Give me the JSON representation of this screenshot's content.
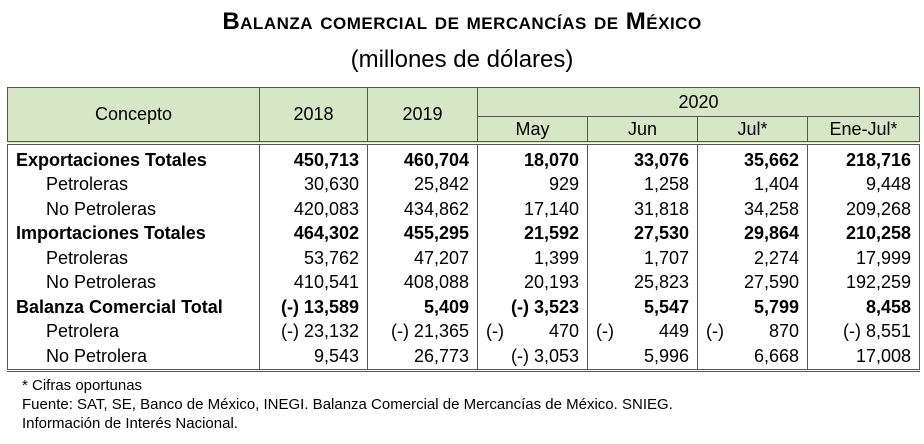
{
  "title": "Balanza comercial de mercancías de México",
  "subtitle": "(millones de dólares)",
  "table": {
    "header_concept": "Concepto",
    "header_years": [
      "2018",
      "2019"
    ],
    "header_group": "2020",
    "header_months": [
      "May",
      "Jun",
      "Jul*",
      "Ene-Jul*"
    ],
    "rows": [
      {
        "label": "Exportaciones Totales",
        "values": [
          "450,713",
          "460,704",
          "18,070",
          "33,076",
          "35,662",
          "218,716"
        ]
      },
      {
        "label": "Petroleras",
        "values": [
          "30,630",
          "25,842",
          "929",
          "1,258",
          "1,404",
          "9,448"
        ]
      },
      {
        "label": "No Petroleras",
        "values": [
          "420,083",
          "434,862",
          "17,140",
          "31,818",
          "34,258",
          "209,268"
        ]
      },
      {
        "label": "Importaciones Totales",
        "values": [
          "464,302",
          "455,295",
          "21,592",
          "27,530",
          "29,864",
          "210,258"
        ]
      },
      {
        "label": "Petroleras",
        "values": [
          "53,762",
          "47,207",
          "1,399",
          "1,707",
          "2,274",
          "17,999"
        ]
      },
      {
        "label": "No Petroleras",
        "values": [
          "410,541",
          "408,088",
          "20,193",
          "25,823",
          "27,590",
          "192,259"
        ]
      },
      {
        "label": "Balanza Comercial Total",
        "values": [
          "(-) 13,589",
          "5,409",
          "(-) 3,523",
          "5,547",
          "5,799",
          "8,458"
        ]
      },
      {
        "label": "Petrolera",
        "values": [
          "(-) 23,132",
          "(-) 21,365",
          "(-)",
          "470",
          "(-)",
          "449",
          "(-)",
          "870",
          "(-) 8,551"
        ]
      },
      {
        "label": "No Petrolera",
        "values": [
          "9,543",
          "26,773",
          "(-) 3,053",
          "5,996",
          "6,668",
          "17,008"
        ]
      }
    ],
    "petrolera_row": {
      "y2018": "(-) 23,132",
      "y2019": "(-) 21,365",
      "may_sign": "(-)",
      "may_val": "470",
      "jun_sign": "(-)",
      "jun_val": "449",
      "jul_sign": "(-)",
      "jul_val": "870",
      "ene_jul": "(-) 8,551"
    }
  },
  "notes": {
    "line1": "* Cifras oportunas",
    "line2": "Fuente: SAT, SE, Banco de México, INEGI. Balanza Comercial de Mercancías de México. SNIEG.",
    "line3": "Información de Interés Nacional."
  }
}
